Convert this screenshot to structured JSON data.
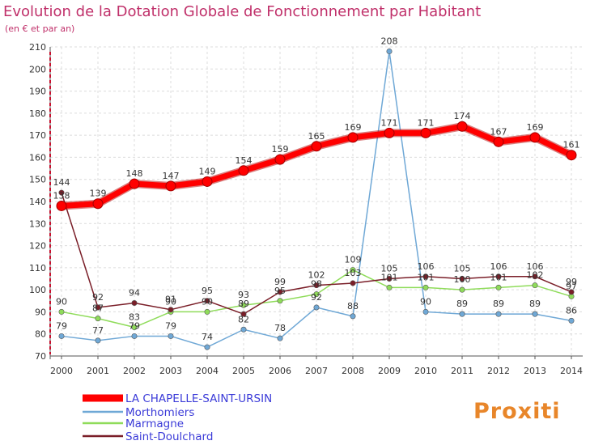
{
  "chart_data": {
    "type": "line",
    "title": "Evolution de la Dotation Globale de Fonctionnement par Habitant",
    "subtitle": "(en € et par an)",
    "x": [
      "2000",
      "2001",
      "2002",
      "2003",
      "2004",
      "2005",
      "2006",
      "2007",
      "2008",
      "2009",
      "2010",
      "2011",
      "2012",
      "2013",
      "2014"
    ],
    "ylim": [
      70,
      210
    ],
    "yticks": [
      70,
      80,
      90,
      100,
      110,
      120,
      130,
      140,
      150,
      160,
      170,
      180,
      190,
      200,
      210
    ],
    "grid": true,
    "legend_position": "bottom-left",
    "series": [
      {
        "name": "LA CHAPELLE-SAINT-URSIN",
        "color": "#ff0000",
        "emphasis": true,
        "values": [
          138,
          139,
          148,
          147,
          149,
          154,
          159,
          165,
          169,
          171,
          171,
          174,
          167,
          169,
          161
        ]
      },
      {
        "name": "Morthomiers",
        "color": "#6fa8d6",
        "values": [
          79,
          77,
          79,
          79,
          74,
          82,
          78,
          92,
          88,
          208,
          90,
          89,
          89,
          89,
          86
        ]
      },
      {
        "name": "Marmagne",
        "color": "#8fdc5a",
        "values": [
          90,
          87,
          83,
          90,
          90,
          93,
          95,
          98,
          109,
          101,
          101,
          100,
          101,
          102,
          97
        ]
      },
      {
        "name": "Saint-Doulchard",
        "color": "#7a1e28",
        "values": [
          144,
          92,
          94,
          91,
          95,
          89,
          99,
          102,
          103,
          105,
          106,
          105,
          106,
          106,
          99
        ]
      }
    ],
    "label_text": {
      "0": [
        "138",
        "139",
        "148",
        "147",
        "149",
        "154",
        "159",
        "165",
        "169",
        "171",
        "171",
        "174",
        "167",
        "169",
        "161"
      ],
      "1": [
        "79",
        "77",
        "79",
        "79",
        "74",
        "82",
        "78",
        "92",
        "88",
        "208",
        "90",
        "89",
        "89",
        "89",
        "86"
      ],
      "2": [
        "90",
        "87",
        "83",
        "90",
        "90",
        "93",
        "95",
        "98",
        "109",
        "101",
        "101",
        "100",
        "101",
        "102",
        "97"
      ],
      "3": [
        "144",
        "92",
        "94",
        "91",
        "95",
        "89",
        "99",
        "102",
        "103",
        "105",
        "106",
        "105",
        "106",
        "106",
        "99"
      ]
    }
  },
  "branding": {
    "logo_text": "Proxiti"
  }
}
